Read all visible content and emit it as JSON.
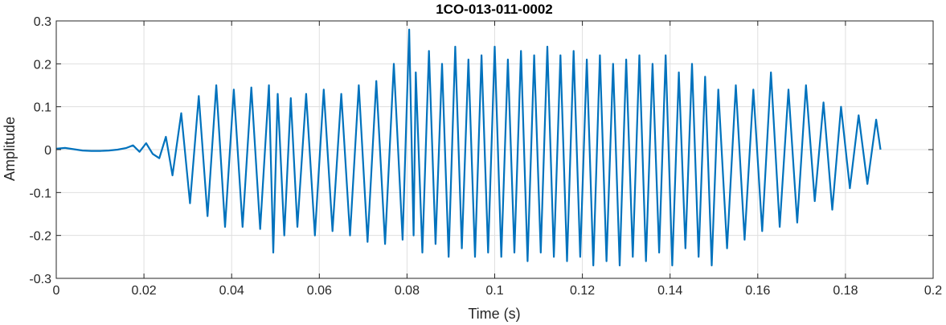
{
  "chart_data": {
    "type": "line",
    "title": "1CO-013-011-0002",
    "xlabel": "Time (s)",
    "ylabel": "Amplitude",
    "xlim": [
      0,
      0.2
    ],
    "ylim": [
      -0.3,
      0.3
    ],
    "grid": true,
    "legend": "none",
    "x_ticks": [
      "0",
      "0.02",
      "0.04",
      "0.06",
      "0.08",
      "0.1",
      "0.12",
      "0.14",
      "0.16",
      "0.18",
      "0.2"
    ],
    "y_ticks": [
      "0.3",
      "0.2",
      "0.1",
      "0",
      "-0.1",
      "-0.2",
      "-0.3"
    ],
    "series": [
      {
        "color": "#0072BD",
        "x": [
          0,
          0.002,
          0.004,
          0.006,
          0.008,
          0.01,
          0.012,
          0.014,
          0.016,
          0.0175,
          0.019,
          0.0205,
          0.022,
          0.0235,
          0.025,
          0.0265,
          0.0285,
          0.0305,
          0.0325,
          0.0345,
          0.0365,
          0.0385,
          0.0405,
          0.0425,
          0.0445,
          0.0465,
          0.0485,
          0.0495,
          0.0505,
          0.052,
          0.0535,
          0.055,
          0.057,
          0.059,
          0.061,
          0.063,
          0.065,
          0.067,
          0.069,
          0.071,
          0.073,
          0.075,
          0.077,
          0.079,
          0.0805,
          0.0815,
          0.082,
          0.0835,
          0.085,
          0.0865,
          0.088,
          0.0895,
          0.091,
          0.0925,
          0.094,
          0.0955,
          0.097,
          0.0985,
          0.1,
          0.1015,
          0.103,
          0.1045,
          0.106,
          0.1075,
          0.109,
          0.1105,
          0.112,
          0.1135,
          0.115,
          0.1165,
          0.118,
          0.1195,
          0.121,
          0.1225,
          0.124,
          0.1255,
          0.127,
          0.1285,
          0.13,
          0.1315,
          0.133,
          0.1345,
          0.136,
          0.1375,
          0.139,
          0.1405,
          0.142,
          0.1435,
          0.145,
          0.1465,
          0.148,
          0.1495,
          0.151,
          0.153,
          0.155,
          0.157,
          0.159,
          0.161,
          0.163,
          0.165,
          0.167,
          0.169,
          0.171,
          0.173,
          0.175,
          0.177,
          0.179,
          0.181,
          0.183,
          0.185,
          0.187,
          0.188
        ],
        "y": [
          0.002,
          0.004,
          0.001,
          -0.002,
          -0.003,
          -0.003,
          -0.002,
          0.0,
          0.004,
          0.01,
          -0.005,
          0.015,
          -0.01,
          -0.02,
          0.03,
          -0.06,
          0.085,
          -0.125,
          0.125,
          -0.155,
          0.15,
          -0.18,
          0.14,
          -0.18,
          0.145,
          -0.185,
          0.15,
          -0.24,
          0.13,
          -0.2,
          0.12,
          -0.18,
          0.13,
          -0.2,
          0.14,
          -0.19,
          0.13,
          -0.2,
          0.15,
          -0.215,
          0.16,
          -0.22,
          0.2,
          -0.21,
          0.28,
          -0.2,
          0.18,
          -0.24,
          0.23,
          -0.22,
          0.2,
          -0.25,
          0.24,
          -0.23,
          0.21,
          -0.25,
          0.22,
          -0.24,
          0.24,
          -0.25,
          0.21,
          -0.24,
          0.23,
          -0.26,
          0.22,
          -0.24,
          0.24,
          -0.25,
          0.22,
          -0.26,
          0.23,
          -0.25,
          0.21,
          -0.27,
          0.22,
          -0.26,
          0.2,
          -0.27,
          0.21,
          -0.25,
          0.22,
          -0.26,
          0.2,
          -0.24,
          0.22,
          -0.27,
          0.18,
          -0.23,
          0.2,
          -0.25,
          0.17,
          -0.27,
          0.14,
          -0.23,
          0.15,
          -0.21,
          0.14,
          -0.19,
          0.18,
          -0.18,
          0.14,
          -0.17,
          0.15,
          -0.12,
          0.11,
          -0.14,
          0.1,
          -0.09,
          0.08,
          -0.08,
          0.07,
          0.0
        ]
      }
    ]
  }
}
